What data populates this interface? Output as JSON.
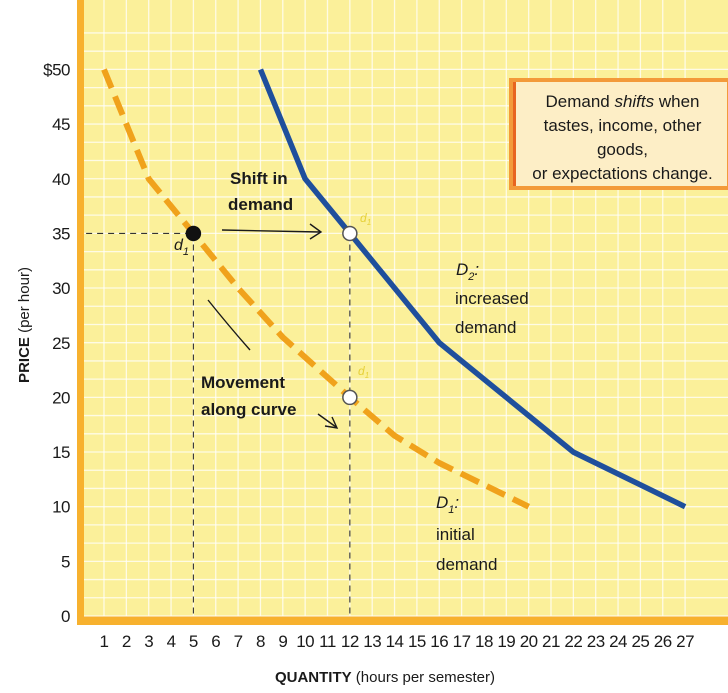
{
  "chart_data": {
    "type": "line",
    "xlabel_bold": "QUANTITY",
    "xlabel_rest": " (hours per semester)",
    "ylabel_bold": "PRICE",
    "ylabel_rest": " (per hour)",
    "x_ticks": [
      "1",
      "2",
      "3",
      "4",
      "5",
      "6",
      "7",
      "8",
      "9",
      "10",
      "11",
      "12",
      "13",
      "14",
      "15",
      "16",
      "17",
      "18",
      "19",
      "20",
      "21",
      "22",
      "23",
      "24",
      "25",
      "26",
      "27"
    ],
    "y_ticks": [
      "0",
      "5",
      "10",
      "15",
      "20",
      "25",
      "30",
      "35",
      "40",
      "45",
      "$50"
    ],
    "y_tick_values": [
      0,
      5,
      10,
      15,
      20,
      25,
      30,
      35,
      40,
      45,
      50
    ],
    "xlim": [
      0.2,
      27.4
    ],
    "ylim": [
      -1,
      54
    ],
    "series": [
      {
        "name": "D1",
        "style": "dashed",
        "color": "#f0a21c",
        "points": [
          [
            1,
            50
          ],
          [
            3,
            40
          ],
          [
            5,
            35
          ],
          [
            7,
            30
          ],
          [
            9,
            25.5
          ],
          [
            12,
            20
          ],
          [
            14,
            16.5
          ],
          [
            16,
            14
          ],
          [
            18,
            12
          ],
          [
            20,
            10
          ]
        ]
      },
      {
        "name": "D2",
        "style": "solid",
        "color": "#1f4f9c",
        "points": [
          [
            8,
            50
          ],
          [
            10,
            40
          ],
          [
            12,
            35
          ],
          [
            16,
            25
          ],
          [
            22,
            15
          ],
          [
            27,
            10
          ]
        ]
      }
    ],
    "points": [
      {
        "label": "d1",
        "x": 5,
        "y": 35,
        "filled": true
      },
      {
        "label": "d1",
        "x": 12,
        "y": 20,
        "filled": false
      },
      {
        "label": "d1",
        "x": 12,
        "y": 35,
        "filled": false
      }
    ],
    "guides": [
      {
        "from": [
          0.2,
          35
        ],
        "to": [
          5,
          35
        ]
      },
      {
        "from": [
          5,
          35
        ],
        "to": [
          5,
          0
        ]
      },
      {
        "from": [
          12,
          35
        ],
        "to": [
          12,
          0
        ]
      }
    ],
    "grid": true,
    "background": "#fbf09a",
    "frame_color": "#f7b12e",
    "annotations": {
      "d1_point_label": "d",
      "d1_point_sub": "1",
      "shift_line1": "Shift in",
      "shift_line2": "demand",
      "movement_line1": "Movement",
      "movement_line2": "along curve",
      "d2_name": "D",
      "d2_sub": "2",
      "d2_colon": ":",
      "d2_line1": "increased",
      "d2_line2": "demand",
      "d1_name": "D",
      "d1_sub": "1",
      "d1_colon": ":",
      "d1_line1": "initial",
      "d1_line2": "demand",
      "small_d": "d",
      "small_sub": "1"
    },
    "callout": {
      "line1_pre": "Demand ",
      "line1_em": "shifts",
      "line1_post": " when",
      "line2": "tastes, income, other goods,",
      "line3": "or expectations change."
    }
  }
}
